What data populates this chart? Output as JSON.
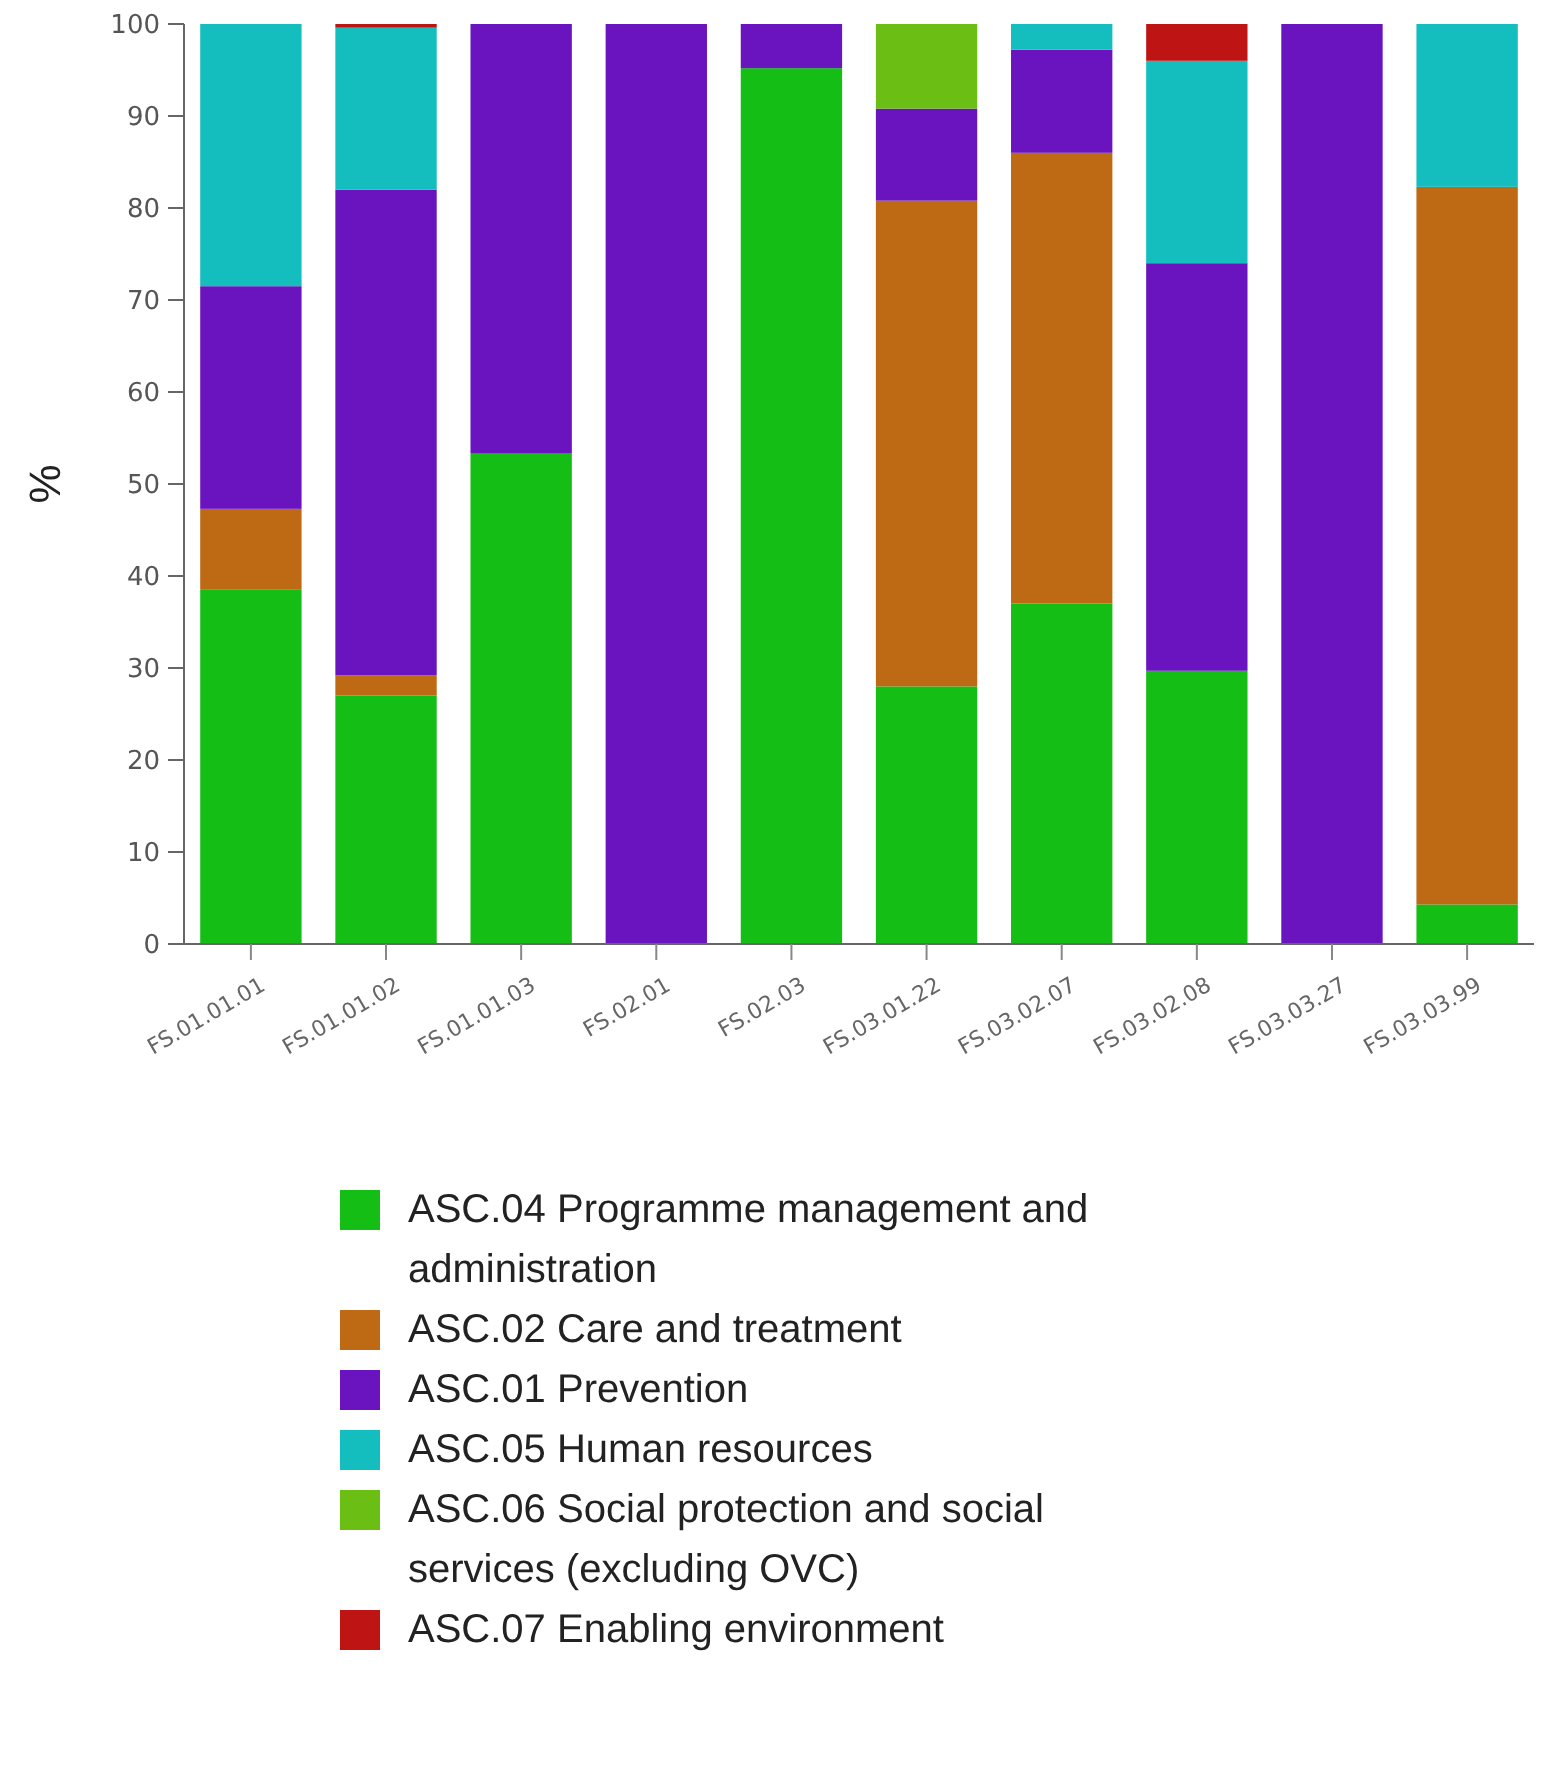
{
  "chart_data": {
    "type": "bar",
    "stacked": true,
    "ylabel": "%",
    "categories": [
      "FS.01.01.01",
      "FS.01.01.02",
      "FS.01.01.03",
      "FS.02.01",
      "FS.02.03",
      "FS.03.01.22",
      "FS.03.02.07",
      "FS.03.02.08",
      "FS.03.03.27",
      "FS.03.03.99"
    ],
    "series": [
      {
        "name": "ASC.04 Programme management and administration",
        "color": "#14be14",
        "values": [
          38.5,
          27,
          53.3,
          0,
          95.2,
          28,
          37,
          29.7,
          0,
          4.3
        ]
      },
      {
        "name": "ASC.02 Care and treatment",
        "color": "#be6914",
        "values": [
          8.8,
          2.2,
          0,
          0,
          0,
          52.8,
          49,
          0,
          0,
          78
        ]
      },
      {
        "name": "ASC.01 Prevention",
        "color": "#6914be",
        "values": [
          24.2,
          52.8,
          46.7,
          100,
          4.8,
          10,
          11.2,
          44.3,
          100,
          0
        ]
      },
      {
        "name": "ASC.05 Human resources",
        "color": "#14bebe",
        "values": [
          28.5,
          17.6,
          0,
          0,
          0,
          0,
          2.8,
          22,
          0,
          17.7
        ]
      },
      {
        "name": "ASC.06 Social protection and social services  (excluding OVC)",
        "color": "#6bbe14",
        "values": [
          0,
          0,
          0,
          0,
          0,
          9.2,
          0,
          0,
          0,
          0
        ]
      },
      {
        "name": "ASC.07 Enabling environment",
        "color": "#be1414",
        "values": [
          0,
          0.4,
          0,
          0,
          0,
          0,
          0,
          4,
          0,
          0
        ]
      }
    ],
    "ylim": [
      0,
      100
    ],
    "yticks": [
      0,
      10,
      20,
      30,
      40,
      50,
      60,
      70,
      80,
      90,
      100
    ],
    "legend": "bottom"
  }
}
